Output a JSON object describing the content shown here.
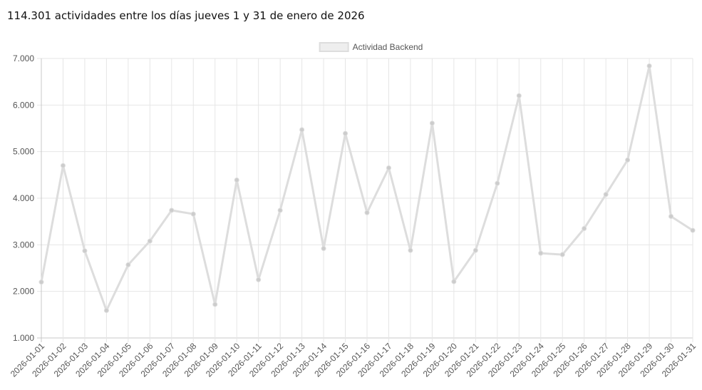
{
  "headline": "114.301 actividades entre los días jueves 1 y 31 de enero de 2026",
  "chart_data": {
    "type": "line",
    "title": "",
    "xlabel": "",
    "ylabel": "",
    "ylim": [
      1000,
      7000
    ],
    "yticks": [
      1000,
      2000,
      3000,
      4000,
      5000,
      6000,
      7000
    ],
    "ytick_labels": [
      "1.000",
      "2.000",
      "3.000",
      "4.000",
      "5.000",
      "6.000",
      "7.000"
    ],
    "grid": true,
    "legend_position": "top-center",
    "categories": [
      "2026-01-01",
      "2026-01-02",
      "2026-01-03",
      "2026-01-04",
      "2026-01-05",
      "2026-01-06",
      "2026-01-07",
      "2026-01-08",
      "2026-01-09",
      "2026-01-10",
      "2026-01-11",
      "2026-01-12",
      "2026-01-13",
      "2026-01-14",
      "2026-01-15",
      "2026-01-16",
      "2026-01-17",
      "2026-01-18",
      "2026-01-19",
      "2026-01-20",
      "2026-01-21",
      "2026-01-22",
      "2026-01-23",
      "2026-01-24",
      "2026-01-25",
      "2026-01-26",
      "2026-01-27",
      "2026-01-28",
      "2026-01-29",
      "2026-01-30",
      "2026-01-31"
    ],
    "series": [
      {
        "name": "Actividad Backend",
        "color": "#dddddd",
        "point_color": "#cccccc",
        "values": [
          2200,
          4700,
          2870,
          1590,
          2570,
          3080,
          3740,
          3660,
          1720,
          4390,
          2250,
          3740,
          5470,
          2920,
          5390,
          3690,
          4650,
          2880,
          5610,
          2210,
          2880,
          4320,
          6200,
          2820,
          2790,
          3350,
          4080,
          4820,
          6840,
          3610,
          3310
        ]
      }
    ]
  }
}
